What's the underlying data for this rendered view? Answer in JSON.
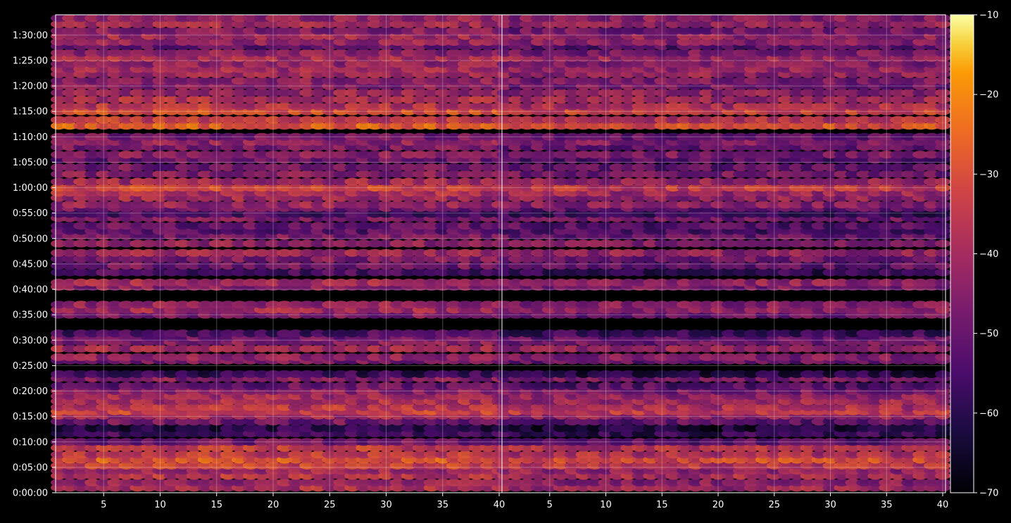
{
  "chart_data": {
    "type": "heatmap",
    "background": "#000000",
    "colormap": "inferno",
    "panels": [
      {
        "x_ticks": [
          5,
          10,
          15,
          20,
          25,
          30,
          35,
          40
        ],
        "xlim": [
          1,
          40
        ],
        "y_ticks": [
          "0:00:00",
          "0:05:00",
          "0:10:00",
          "0:15:00",
          "0:20:00",
          "0:25:00",
          "0:30:00",
          "0:35:00",
          "0:40:00",
          "0:45:00",
          "0:50:00",
          "0:55:00",
          "1:00:00",
          "1:05:00",
          "1:10:00",
          "1:15:00",
          "1:20:00",
          "1:25:00",
          "1:30:00"
        ],
        "ylim_seconds": [
          0,
          5640
        ],
        "grid": true
      },
      {
        "x_ticks": [
          5,
          10,
          15,
          20,
          25,
          30,
          35,
          40
        ],
        "xlim": [
          1,
          40
        ],
        "grid": true
      }
    ],
    "colorbar": {
      "ticks": [
        -10,
        -20,
        -30,
        -40,
        -50,
        -60,
        -70
      ],
      "range": [
        -70,
        -10
      ]
    },
    "rows": [
      {
        "t": 60,
        "v": -38
      },
      {
        "t": 120,
        "v": -42
      },
      {
        "t": 200,
        "v": -36
      },
      {
        "t": 260,
        "v": -40
      },
      {
        "t": 320,
        "v": -33
      },
      {
        "t": 390,
        "v": -28
      },
      {
        "t": 450,
        "v": -35
      },
      {
        "t": 530,
        "v": -34
      },
      {
        "t": 600,
        "v": -48
      },
      {
        "t": 700,
        "v": -55
      },
      {
        "t": 760,
        "v": -60
      },
      {
        "t": 840,
        "v": -48
      },
      {
        "t": 910,
        "v": -40
      },
      {
        "t": 960,
        "v": -33
      },
      {
        "t": 1010,
        "v": -36
      },
      {
        "t": 1080,
        "v": -38
      },
      {
        "t": 1140,
        "v": -40
      },
      {
        "t": 1200,
        "v": -44
      },
      {
        "t": 1260,
        "v": -50
      },
      {
        "t": 1350,
        "v": -45
      },
      {
        "t": 1400,
        "v": -58
      },
      {
        "t": 1560,
        "v": -47
      },
      {
        "t": 1600,
        "v": -43
      },
      {
        "t": 1700,
        "v": -40
      },
      {
        "t": 1780,
        "v": -45
      },
      {
        "t": 1830,
        "v": -48
      },
      {
        "t": 1880,
        "v": -55
      },
      {
        "t": 2100,
        "v": -46
      },
      {
        "t": 2160,
        "v": -40
      },
      {
        "t": 2220,
        "v": -42
      },
      {
        "t": 2430,
        "v": -44
      },
      {
        "t": 2480,
        "v": -40
      },
      {
        "t": 2600,
        "v": -55
      },
      {
        "t": 2680,
        "v": -48
      },
      {
        "t": 2760,
        "v": -46
      },
      {
        "t": 2830,
        "v": -40
      },
      {
        "t": 2940,
        "v": -43
      },
      {
        "t": 3030,
        "v": -47
      },
      {
        "t": 3090,
        "v": -52
      },
      {
        "t": 3150,
        "v": -50
      },
      {
        "t": 3240,
        "v": -46
      },
      {
        "t": 3290,
        "v": -55
      },
      {
        "t": 3360,
        "v": -48
      },
      {
        "t": 3400,
        "v": -42
      },
      {
        "t": 3480,
        "v": -40
      },
      {
        "t": 3540,
        "v": -38
      },
      {
        "t": 3600,
        "v": -32
      },
      {
        "t": 3670,
        "v": -40
      },
      {
        "t": 3760,
        "v": -45
      },
      {
        "t": 3840,
        "v": -48
      },
      {
        "t": 3930,
        "v": -50
      },
      {
        "t": 3990,
        "v": -44
      },
      {
        "t": 4080,
        "v": -47
      },
      {
        "t": 4140,
        "v": -43
      },
      {
        "t": 4200,
        "v": -48
      },
      {
        "t": 4330,
        "v": -27
      },
      {
        "t": 4400,
        "v": -34
      },
      {
        "t": 4500,
        "v": -30
      },
      {
        "t": 4560,
        "v": -36
      },
      {
        "t": 4640,
        "v": -38
      },
      {
        "t": 4720,
        "v": -41
      },
      {
        "t": 4800,
        "v": -45
      },
      {
        "t": 4860,
        "v": -44
      },
      {
        "t": 4940,
        "v": -40
      },
      {
        "t": 5000,
        "v": -40
      },
      {
        "t": 5060,
        "v": -43
      },
      {
        "t": 5130,
        "v": -38
      },
      {
        "t": 5190,
        "v": -44
      },
      {
        "t": 5270,
        "v": -50
      },
      {
        "t": 5320,
        "v": -42
      },
      {
        "t": 5390,
        "v": -40
      },
      {
        "t": 5450,
        "v": -45
      },
      {
        "t": 5530,
        "v": -40
      },
      {
        "t": 5600,
        "v": -42
      }
    ]
  }
}
